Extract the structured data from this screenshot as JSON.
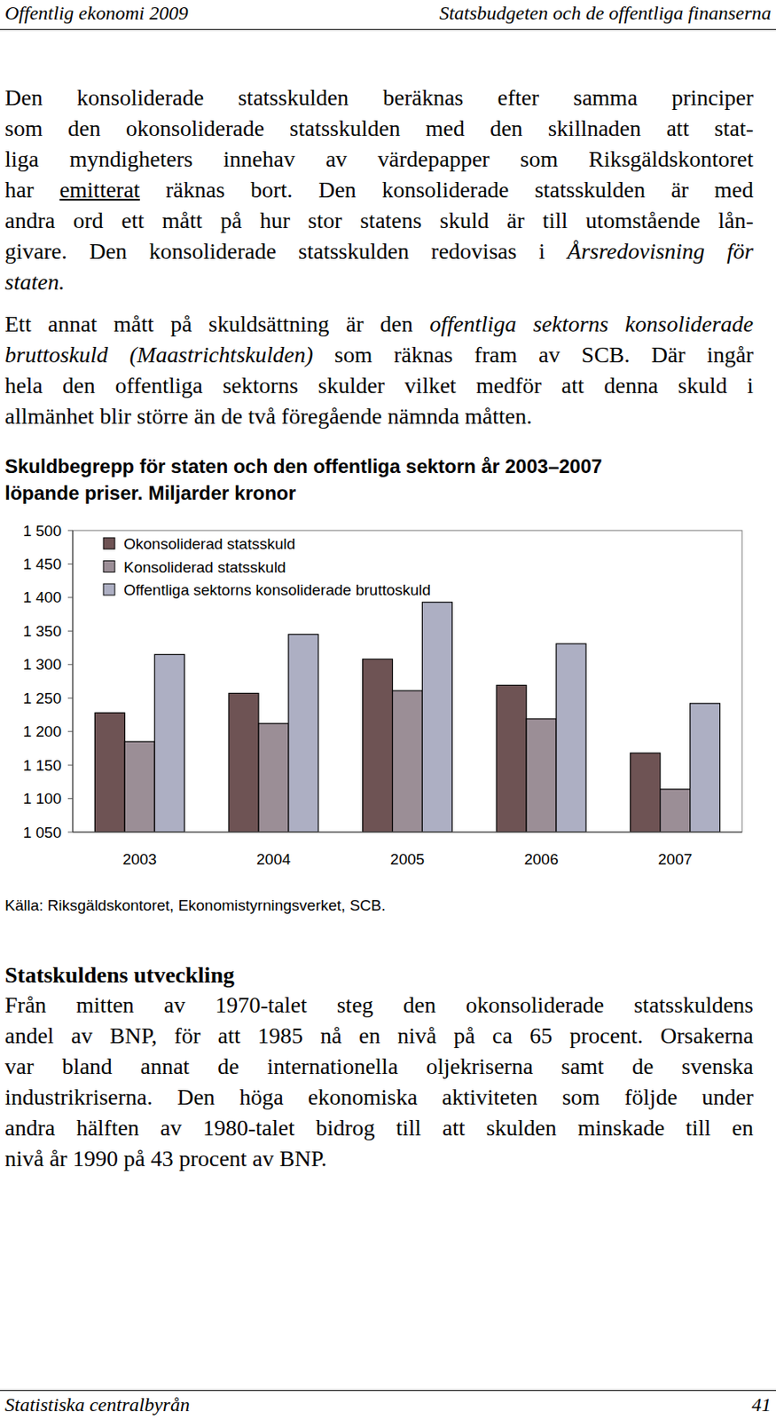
{
  "header": {
    "left": "Offentlig ekonomi 2009",
    "right": "Statsbudgeten och de offentliga finanserna"
  },
  "paragraphs": [
    {
      "lines": [
        [
          {
            "text": "Den konsoliderade statsskulden beräknas efter samma principer"
          }
        ],
        [
          {
            "text": "som den okonsoliderade statsskulden med den skillnaden att stat-"
          }
        ],
        [
          {
            "text": "liga myndigheters innehav av värdepapper som Riksgäldskontoret"
          }
        ],
        [
          {
            "text": "har "
          },
          {
            "text": "emitterat",
            "style": "link"
          },
          {
            "text": " räknas bort. Den konsoliderade statsskulden är med"
          }
        ],
        [
          {
            "text": "andra ord ett mått på hur stor statens skuld är till utomstående lån-"
          }
        ],
        [
          {
            "text": "givare. Den konsoliderade statsskulden redovisas i "
          },
          {
            "text": "Årsredovisning för",
            "style": "italic"
          }
        ],
        [
          {
            "text": "staten.",
            "style": "italic"
          }
        ]
      ]
    },
    {
      "lines": [
        [
          {
            "text": "Ett annat mått på skuldsättning är den "
          },
          {
            "text": "offentliga sektorns konsoliderade",
            "style": "italic"
          }
        ],
        [
          {
            "text": "bruttoskuld (Maastrichtskulden)",
            "style": "italic"
          },
          {
            "text": " som räknas fram av SCB. Där ingår"
          }
        ],
        [
          {
            "text": "hela den offentliga sektorns skulder vilket medför att denna skuld i"
          }
        ],
        [
          {
            "text": "allmänhet blir större än de två föregående nämnda måtten."
          }
        ]
      ]
    }
  ],
  "chart_data": {
    "type": "bar",
    "title": "Skuldbegrepp för staten och den offentliga sektorn år 2003–2007",
    "subtitle": "löpande priser. Miljarder kronor",
    "categories": [
      "2003",
      "2004",
      "2005",
      "2006",
      "2007"
    ],
    "series": [
      {
        "name": "Okonsoliderad statsskuld",
        "color": "#6e5354",
        "values": [
          1228,
          1257,
          1308,
          1269,
          1168
        ]
      },
      {
        "name": "Konsoliderad statsskuld",
        "color": "#9b8e96",
        "values": [
          1185,
          1212,
          1261,
          1219,
          1114
        ]
      },
      {
        "name": "Offentliga sektorns konsoliderade bruttoskuld",
        "color": "#adafc3",
        "values": [
          1315,
          1345,
          1393,
          1331,
          1242
        ]
      }
    ],
    "ylim": [
      1050,
      1500
    ],
    "yticks": [
      {
        "value": 1050,
        "label": "1 050"
      },
      {
        "value": 1100,
        "label": "1 100"
      },
      {
        "value": 1150,
        "label": "1 150"
      },
      {
        "value": 1200,
        "label": "1 200"
      },
      {
        "value": 1250,
        "label": "1 250"
      },
      {
        "value": 1300,
        "label": "1 300"
      },
      {
        "value": 1350,
        "label": "1 350"
      },
      {
        "value": 1400,
        "label": "1 400"
      },
      {
        "value": 1450,
        "label": "1 450"
      },
      {
        "value": 1500,
        "label": "1 500"
      }
    ],
    "grid": false,
    "legend": "top-left"
  },
  "source": "Källa: Riksgäldskontoret, Ekonomistyrningsverket, SCB.",
  "section": {
    "heading": "Statskuldens utveckling",
    "lines": [
      "Från mitten av 1970-talet steg den okonsoliderade statsskuldens",
      "andel av BNP, för att 1985 nå en nivå på ca 65 procent. Orsakerna",
      "var bland annat de internationella oljekriserna samt de svenska",
      "industrikriserna. Den höga ekonomiska aktiviteten som följde under",
      "andra hälften av 1980-talet bidrog till att skulden minskade till en",
      "nivå år 1990 på 43 procent av BNP."
    ]
  },
  "footer": {
    "left": "Statistiska centralbyrån",
    "right": "41"
  }
}
